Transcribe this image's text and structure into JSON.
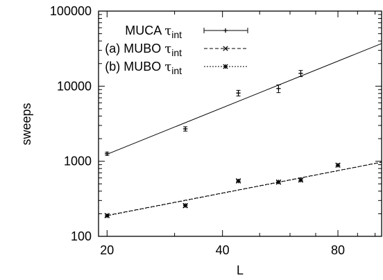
{
  "chart_data": {
    "type": "scatter",
    "xlabel": "L",
    "ylabel": "sweeps",
    "xscale": "log",
    "yscale": "log",
    "xlim": [
      19,
      104
    ],
    "ylim": [
      100,
      100000
    ],
    "xticks": [
      20,
      40,
      80
    ],
    "yticks": [
      100,
      1000,
      10000,
      100000
    ],
    "legend_position": "top-right",
    "series": [
      {
        "name": "MUCA τint",
        "legend_main": "MUCA",
        "legend_tau": "τ",
        "legend_sub": "int",
        "marker": "plus",
        "line": "solid",
        "color": "#000000",
        "points": [
          {
            "x": 20,
            "y": 1260,
            "ylo": 1200,
            "yhi": 1320
          },
          {
            "x": 32,
            "y": 2700,
            "ylo": 2520,
            "yhi": 2880
          },
          {
            "x": 44,
            "y": 8100,
            "ylo": 7400,
            "yhi": 8800
          },
          {
            "x": 56,
            "y": 9300,
            "ylo": 8200,
            "yhi": 10400
          },
          {
            "x": 64,
            "y": 14800,
            "ylo": 13400,
            "yhi": 16200
          }
        ],
        "fit": {
          "x": [
            20,
            104
          ],
          "y": [
            1240,
            37000
          ]
        }
      },
      {
        "name": "(a) MUBO τint",
        "legend_main": "(a) MUBO",
        "legend_tau": "τ",
        "legend_sub": "int",
        "marker": "cross",
        "line": "dashed",
        "color": "#000000",
        "points": [
          {
            "x": 20,
            "y": 190
          },
          {
            "x": 32,
            "y": 255
          },
          {
            "x": 44,
            "y": 550
          },
          {
            "x": 56,
            "y": 525
          },
          {
            "x": 64,
            "y": 565
          },
          {
            "x": 80,
            "y": 890
          }
        ],
        "fit": {
          "x": [
            20,
            104
          ],
          "y": [
            190,
            975
          ]
        }
      },
      {
        "name": "(b) MUBO τint",
        "legend_main": "(b) MUBO",
        "legend_tau": "τ",
        "legend_sub": "int",
        "marker": "star",
        "line": "dotted",
        "color": "#000000",
        "points": [
          {
            "x": 20,
            "y": 188
          },
          {
            "x": 32,
            "y": 258
          },
          {
            "x": 44,
            "y": 545
          },
          {
            "x": 56,
            "y": 530
          },
          {
            "x": 64,
            "y": 560
          },
          {
            "x": 80,
            "y": 885
          }
        ],
        "fit": {
          "x": [
            20,
            104
          ],
          "y": [
            188,
            970
          ]
        }
      }
    ]
  }
}
